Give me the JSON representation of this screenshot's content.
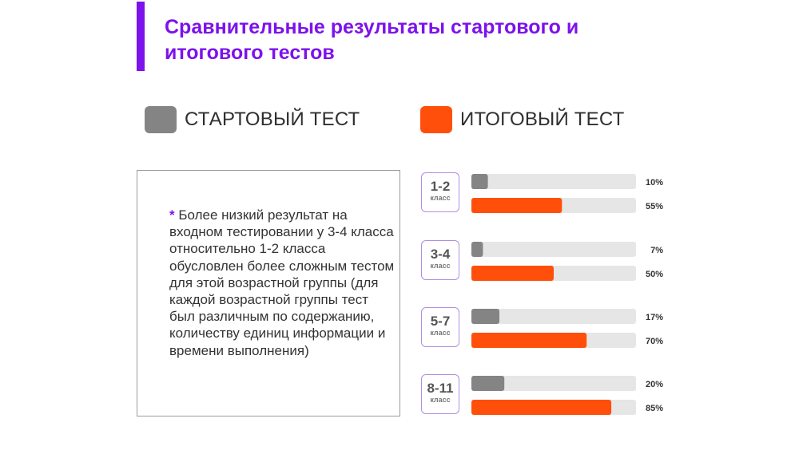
{
  "title": "Сравнительные результаты стартового и итогового тестов",
  "legend": {
    "start": {
      "label": "СТАРТОВЫЙ ТЕСТ",
      "color": "#848484"
    },
    "final": {
      "label": "ИТОГОВЫЙ ТЕСТ",
      "color": "#ff4f0a"
    }
  },
  "note": {
    "star": "*",
    "text": "Более низкий результат на входном тестировании у 3-4 класса относительно 1-2 класса обусловлен более сложным тестом для этой возрастной группы (для каждой возрастной группы тест был различным по содержанию, количеству единиц информации и времени выполнения)"
  },
  "chart_data": {
    "type": "bar",
    "orientation": "horizontal",
    "categories": [
      "1-2",
      "3-4",
      "5-7",
      "8-11"
    ],
    "category_sublabel": "класс",
    "series": [
      {
        "name": "СТАРТОВЫЙ ТЕСТ",
        "values": [
          10,
          7,
          17,
          20
        ],
        "labels": [
          "10%",
          "7%",
          "17%",
          "20%"
        ],
        "color": "#848484"
      },
      {
        "name": "ИТОГОВЫЙ ТЕСТ",
        "values": [
          55,
          50,
          70,
          85
        ],
        "labels": [
          "55%",
          "50%",
          "70%",
          "85%"
        ],
        "color": "#ff4f0a"
      }
    ],
    "track_color": "#e6e6e6",
    "xlim": [
      0,
      100
    ],
    "grid": false,
    "legend_position": "top"
  }
}
